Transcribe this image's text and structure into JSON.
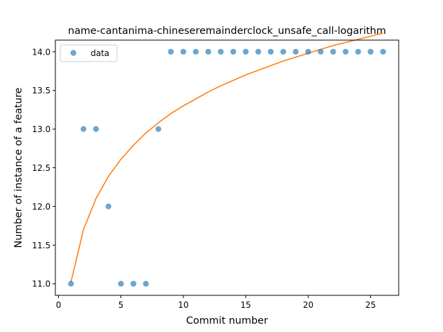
{
  "chart_data": {
    "type": "scatter",
    "title": "name-cantanima-chineseremainderclock_unsafe_call-logarithm",
    "xlabel": "Commit number",
    "ylabel": "Number of instance of a feature",
    "xlim": [
      -0.25,
      27.25
    ],
    "ylim": [
      10.85,
      14.15
    ],
    "x_ticks": [
      0,
      5,
      10,
      15,
      20,
      25
    ],
    "x_tick_labels": [
      "0",
      "5",
      "10",
      "15",
      "20",
      "25"
    ],
    "y_ticks": [
      11.0,
      11.5,
      12.0,
      12.5,
      13.0,
      13.5,
      14.0
    ],
    "y_tick_labels": [
      "11.0",
      "11.5",
      "12.0",
      "12.5",
      "13.0",
      "13.5",
      "14.0"
    ],
    "legend": {
      "entries": [
        "data"
      ],
      "placement": "upper-left"
    },
    "series": [
      {
        "name": "data",
        "kind": "scatter",
        "color": "#1f77b4",
        "x": [
          1,
          2,
          3,
          4,
          5,
          6,
          7,
          8,
          9,
          10,
          11,
          12,
          13,
          14,
          15,
          16,
          17,
          18,
          19,
          20,
          21,
          22,
          23,
          24,
          25,
          26
        ],
        "y": [
          11,
          13,
          13,
          12,
          11,
          11,
          11,
          13,
          14,
          14,
          14,
          14,
          14,
          14,
          14,
          14,
          14,
          14,
          14,
          14,
          14,
          14,
          14,
          14,
          14,
          14
        ]
      },
      {
        "kind": "line",
        "color": "#ff7f0e",
        "x": [
          1,
          2,
          3,
          4,
          5,
          6,
          7,
          8,
          9,
          10,
          11,
          12,
          13,
          14,
          15,
          16,
          17,
          18,
          19,
          20,
          21,
          22,
          23,
          24,
          25,
          26
        ],
        "y": [
          11.02,
          11.7,
          12.1,
          12.39,
          12.61,
          12.79,
          12.95,
          13.08,
          13.2,
          13.3,
          13.39,
          13.48,
          13.56,
          13.63,
          13.7,
          13.76,
          13.82,
          13.88,
          13.93,
          13.98,
          14.03,
          14.08,
          14.12,
          14.16,
          14.2,
          14.24
        ]
      }
    ]
  }
}
